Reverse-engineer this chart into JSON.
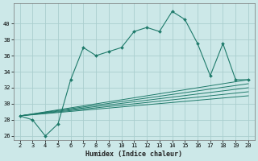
{
  "xlabel": "Humidex (Indice chaleur)",
  "x_values": [
    2,
    3,
    4,
    5,
    6,
    7,
    8,
    9,
    10,
    11,
    12,
    13,
    14,
    15,
    16,
    17,
    18,
    19,
    20
  ],
  "main_line_y": [
    28.5,
    28.0,
    26.0,
    27.5,
    33.0,
    37.0,
    36.0,
    36.5,
    37.0,
    39.0,
    39.5,
    39.0,
    41.5,
    40.5,
    37.5,
    33.5,
    37.5,
    33.0,
    33.0
  ],
  "diag_lines": [
    {
      "x": [
        2,
        20
      ],
      "y": [
        28.5,
        33.0
      ]
    },
    {
      "x": [
        2,
        20
      ],
      "y": [
        28.5,
        32.5
      ]
    },
    {
      "x": [
        2,
        20
      ],
      "y": [
        28.5,
        32.0
      ]
    },
    {
      "x": [
        2,
        20
      ],
      "y": [
        28.5,
        31.5
      ]
    },
    {
      "x": [
        2,
        20
      ],
      "y": [
        28.5,
        31.0
      ]
    }
  ],
  "line_color": "#1e7a6a",
  "bg_color": "#cce8e8",
  "grid_color": "#aacece",
  "ylim": [
    25.5,
    42.5
  ],
  "yticks": [
    26,
    28,
    30,
    32,
    34,
    36,
    38,
    40
  ],
  "xticks": [
    2,
    3,
    4,
    5,
    6,
    7,
    8,
    9,
    10,
    11,
    12,
    13,
    14,
    15,
    16,
    17,
    18,
    19,
    20
  ],
  "tick_labelsize": 5.0,
  "xlabel_fontsize": 6.0
}
